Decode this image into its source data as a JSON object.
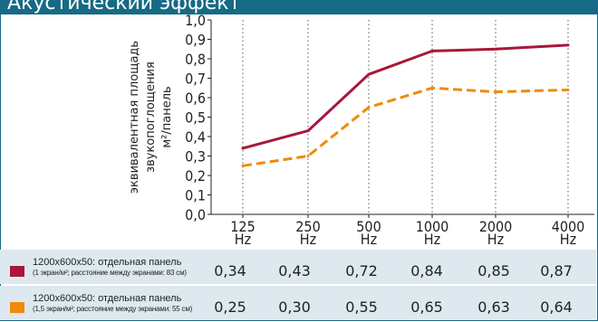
{
  "header": {
    "title": "Акустический эффект"
  },
  "chart_data": {
    "type": "line",
    "ylabel_lines": [
      "эквивалентная площадь",
      "звукопоглощения",
      "м²/панель"
    ],
    "x_ticks": [
      {
        "value": "125",
        "unit": "Hz"
      },
      {
        "value": "250",
        "unit": "Hz"
      },
      {
        "value": "500",
        "unit": "Hz"
      },
      {
        "value": "1000",
        "unit": "Hz"
      },
      {
        "value": "2000",
        "unit": "Hz"
      },
      {
        "value": "4000",
        "unit": "Hz"
      }
    ],
    "y_ticks": [
      "0,0",
      "0,1",
      "0,2",
      "0,3",
      "0,4",
      "0,5",
      "0,6",
      "0,7",
      "0,8",
      "0,9",
      "1,0"
    ],
    "ylim": [
      0,
      1
    ],
    "grid": "vertical-dotted",
    "series": [
      {
        "label_main": "1200x600x50: отдельная панель",
        "label_sub": "(1 экран/м²; расстояние между экранами: 83 см)",
        "color": "#a8173a",
        "style": "solid",
        "values": [
          0.34,
          0.43,
          0.72,
          0.84,
          0.85,
          0.87
        ],
        "display": [
          "0,34",
          "0,43",
          "0,72",
          "0,84",
          "0,85",
          "0,87"
        ]
      },
      {
        "label_main": "1200x600x50: отдельная панель",
        "label_sub": "(1,5 экран/м²; расстояние между экранами: 55 см)",
        "color": "#f08a0a",
        "style": "dashed",
        "values": [
          0.25,
          0.3,
          0.55,
          0.65,
          0.63,
          0.64
        ],
        "display": [
          "0,25",
          "0,30",
          "0,55",
          "0,65",
          "0,63",
          "0,64"
        ]
      }
    ]
  }
}
